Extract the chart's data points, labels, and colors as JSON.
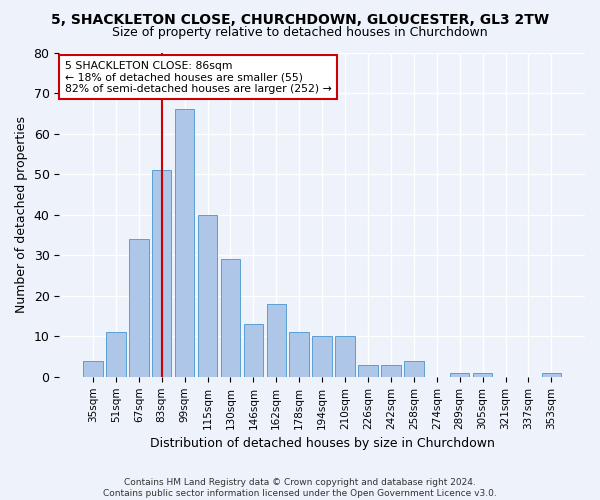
{
  "title_line1": "5, SHACKLETON CLOSE, CHURCHDOWN, GLOUCESTER, GL3 2TW",
  "title_line2": "Size of property relative to detached houses in Churchdown",
  "xlabel": "Distribution of detached houses by size in Churchdown",
  "ylabel": "Number of detached properties",
  "categories": [
    "35sqm",
    "51sqm",
    "67sqm",
    "83sqm",
    "99sqm",
    "115sqm",
    "130sqm",
    "146sqm",
    "162sqm",
    "178sqm",
    "194sqm",
    "210sqm",
    "226sqm",
    "242sqm",
    "258sqm",
    "274sqm",
    "289sqm",
    "305sqm",
    "321sqm",
    "337sqm",
    "353sqm"
  ],
  "values": [
    4,
    11,
    34,
    51,
    66,
    40,
    29,
    13,
    18,
    11,
    10,
    10,
    3,
    3,
    4,
    0,
    1,
    1,
    0,
    0,
    1
  ],
  "bar_color": "#aec6e8",
  "bar_edge_color": "#5a9fd4",
  "background_color": "#eef2fb",
  "grid_color": "#ffffff",
  "annotation_box_text": "5 SHACKLETON CLOSE: 86sqm\n← 18% of detached houses are smaller (55)\n82% of semi-detached houses are larger (252) →",
  "vline_x": 3,
  "vline_color": "#cc0000",
  "annotation_box_color": "#ffffff",
  "annotation_box_edge_color": "#cc0000",
  "ylim": [
    0,
    80
  ],
  "yticks": [
    0,
    10,
    20,
    30,
    40,
    50,
    60,
    70,
    80
  ],
  "footer_line1": "Contains HM Land Registry data © Crown copyright and database right 2024.",
  "footer_line2": "Contains public sector information licensed under the Open Government Licence v3.0."
}
